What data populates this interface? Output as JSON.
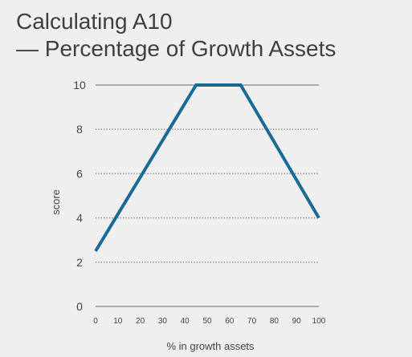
{
  "title_lines": [
    "Calculating A10",
    "— Percentage of Growth Assets"
  ],
  "chart_data": {
    "type": "line",
    "title": "Calculating A10 — Percentage of Growth Assets",
    "xlabel": "% in growth assets",
    "ylabel": "score",
    "xlim": [
      0,
      100
    ],
    "ylim": [
      0,
      10
    ],
    "x_ticks": [
      0,
      10,
      20,
      30,
      40,
      50,
      60,
      70,
      80,
      90,
      100
    ],
    "y_ticks": [
      0,
      2,
      4,
      6,
      8,
      10
    ],
    "grid": "horizontal dotted",
    "series": [
      {
        "x": [
          0,
          45,
          65,
          100
        ],
        "y": [
          2.5,
          10,
          10,
          4
        ],
        "color": "#1a6a96"
      }
    ]
  }
}
